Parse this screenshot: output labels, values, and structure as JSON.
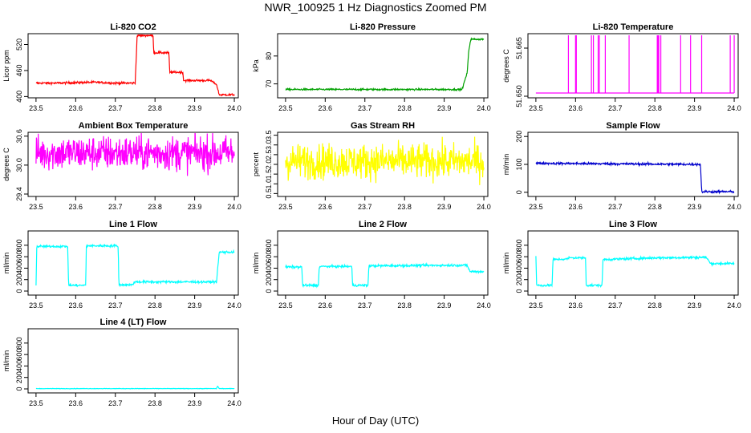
{
  "figure": {
    "title": "NWR_100925  1 Hz Diagnostics Zoomed PM",
    "xlabel": "Hour of Day (UTC)"
  },
  "chart_data": [
    {
      "type": "line",
      "title": "Li-820 CO2",
      "ylabel": "Licor ppm",
      "color": "#ff0000",
      "xlim": [
        23.48,
        24.01
      ],
      "ylim": [
        397,
        545
      ],
      "yticks": [
        "400",
        "460",
        "520"
      ],
      "ytick_values": [
        400,
        460,
        520
      ],
      "xticks": [
        "23.5",
        "23.6",
        "23.7",
        "23.8",
        "23.9",
        "24.0"
      ],
      "series": [
        {
          "noise": 1.2,
          "points": [
            [
              23.5,
              431
            ],
            [
              23.55,
              431
            ],
            [
              23.6,
              432
            ],
            [
              23.65,
              433
            ],
            [
              23.7,
              431
            ],
            [
              23.75,
              431
            ],
            [
              23.755,
              541
            ],
            [
              23.795,
              541
            ],
            [
              23.797,
              501
            ],
            [
              23.835,
              501
            ],
            [
              23.837,
              456
            ],
            [
              23.87,
              456
            ],
            [
              23.872,
              437
            ],
            [
              23.94,
              437
            ],
            [
              23.955,
              428
            ],
            [
              23.962,
              404
            ],
            [
              24.0,
              404
            ]
          ]
        }
      ]
    },
    {
      "type": "line",
      "title": "Li-820 Pressure",
      "ylabel": "kPa",
      "color": "#00a000",
      "xlim": [
        23.48,
        24.01
      ],
      "ylim": [
        65,
        88
      ],
      "yticks": [
        "70",
        "80"
      ],
      "ytick_values": [
        70,
        80
      ],
      "xticks": [
        "23.5",
        "23.6",
        "23.7",
        "23.8",
        "23.9",
        "24.0"
      ],
      "series": [
        {
          "noise": 0.15,
          "points": [
            [
              23.5,
              68
            ],
            [
              23.7,
              68
            ],
            [
              23.9,
              68
            ],
            [
              23.945,
              68
            ],
            [
              23.958,
              74
            ],
            [
              23.962,
              82
            ],
            [
              23.967,
              86
            ],
            [
              24.0,
              86
            ]
          ]
        }
      ]
    },
    {
      "type": "line",
      "title": "Li-820 Temperature",
      "ylabel": "degrees C",
      "color": "#ff00ff",
      "xlim": [
        23.48,
        24.01
      ],
      "ylim": [
        51.6495,
        51.6695
      ],
      "yticks": [
        "51.650",
        "51.665"
      ],
      "ytick_values": [
        51.65,
        51.665
      ],
      "xticks": [
        "23.5",
        "23.6",
        "23.7",
        "23.8",
        "23.9",
        "24.0"
      ],
      "series": [
        {
          "noise": 0,
          "baseline": 51.651,
          "spike_top": 51.669,
          "spikes": [
            23.582,
            23.6,
            23.602,
            23.64,
            23.645,
            23.657,
            23.66,
            23.675,
            23.735,
            23.806,
            23.808,
            23.81,
            23.815,
            23.865,
            23.89,
            23.918,
            23.99,
            24.0
          ]
        }
      ]
    },
    {
      "type": "line",
      "title": "Ambient Box Temperature",
      "ylabel": "degrees C",
      "color": "#ff00ff",
      "xlim": [
        23.48,
        24.01
      ],
      "ylim": [
        29.35,
        30.68
      ],
      "yticks": [
        "29.4",
        "30.0",
        "30.6"
      ],
      "ytick_values": [
        29.4,
        30.0,
        30.6
      ],
      "xticks": [
        "23.5",
        "23.6",
        "23.7",
        "23.8",
        "23.9",
        "24.0"
      ],
      "series": [
        {
          "noise": 0.18,
          "center": 30.25,
          "points": [
            [
              23.5,
              30.25
            ],
            [
              24.0,
              30.25
            ]
          ]
        }
      ]
    },
    {
      "type": "line",
      "title": "Gas Stream RH",
      "ylabel": "percent",
      "color": "#ffff00",
      "xlim": [
        23.48,
        24.01
      ],
      "ylim": [
        0.35,
        3.65
      ],
      "yticks": [
        "0.5",
        "1.0",
        "1.5",
        "2.0",
        "2.5",
        "3.0",
        "3.5"
      ],
      "ytick_values": [
        0.5,
        1.0,
        1.5,
        2.0,
        2.5,
        3.0,
        3.5
      ],
      "xticks": [
        "23.5",
        "23.6",
        "23.7",
        "23.8",
        "23.9",
        "24.0"
      ],
      "series": [
        {
          "noise": 0.45,
          "center": 2.15,
          "points": [
            [
              23.5,
              2.15
            ],
            [
              24.0,
              2.15
            ]
          ]
        }
      ]
    },
    {
      "type": "line",
      "title": "Sample Flow",
      "ylabel": "ml/min",
      "color": "#0000cc",
      "xlim": [
        23.48,
        24.01
      ],
      "ylim": [
        -15,
        215
      ],
      "yticks": [
        "0",
        "100",
        "200"
      ],
      "ytick_values": [
        0,
        100,
        200
      ],
      "xticks": [
        "23.5",
        "23.6",
        "23.7",
        "23.8",
        "23.9",
        "24.0"
      ],
      "series": [
        {
          "noise": 2,
          "points": [
            [
              23.5,
              104
            ],
            [
              23.6,
              103
            ],
            [
              23.7,
              102
            ],
            [
              23.8,
              101
            ],
            [
              23.91,
              100
            ],
            [
              23.915,
              100
            ],
            [
              23.918,
              2
            ],
            [
              24.0,
              2
            ]
          ]
        }
      ]
    },
    {
      "type": "line",
      "title": "Line 1 Flow",
      "ylabel": "ml/min",
      "color": "#00ffff",
      "xlim": [
        23.48,
        24.01
      ],
      "ylim": [
        -70,
        1050
      ],
      "yticks": [
        "0",
        "200",
        "400",
        "600",
        "800"
      ],
      "ytick_values": [
        0,
        200,
        400,
        600,
        800
      ],
      "xticks": [
        "23.5",
        "23.6",
        "23.7",
        "23.8",
        "23.9",
        "24.0"
      ],
      "series": [
        {
          "noise": 10,
          "points": [
            [
              23.5,
              100
            ],
            [
              23.502,
              780
            ],
            [
              23.58,
              780
            ],
            [
              23.582,
              100
            ],
            [
              23.625,
              100
            ],
            [
              23.627,
              790
            ],
            [
              23.707,
              790
            ],
            [
              23.709,
              110
            ],
            [
              23.745,
              110
            ],
            [
              23.747,
              160
            ],
            [
              23.955,
              160
            ],
            [
              23.962,
              680
            ],
            [
              24.0,
              680
            ]
          ]
        }
      ]
    },
    {
      "type": "line",
      "title": "Line 2 Flow",
      "ylabel": "ml/min",
      "color": "#00ffff",
      "xlim": [
        23.48,
        24.01
      ],
      "ylim": [
        -70,
        1050
      ],
      "yticks": [
        "0",
        "200",
        "400",
        "600",
        "800"
      ],
      "ytick_values": [
        0,
        200,
        400,
        600,
        800
      ],
      "xticks": [
        "23.5",
        "23.6",
        "23.7",
        "23.8",
        "23.9",
        "24.0"
      ],
      "series": [
        {
          "noise": 10,
          "points": [
            [
              23.5,
              420
            ],
            [
              23.541,
              420
            ],
            [
              23.543,
              100
            ],
            [
              23.583,
              100
            ],
            [
              23.585,
              430
            ],
            [
              23.667,
              430
            ],
            [
              23.669,
              100
            ],
            [
              23.708,
              100
            ],
            [
              23.71,
              440
            ],
            [
              23.9,
              450
            ],
            [
              23.958,
              450
            ],
            [
              23.965,
              340
            ],
            [
              24.0,
              340
            ]
          ]
        }
      ]
    },
    {
      "type": "line",
      "title": "Line 3 Flow",
      "ylabel": "ml/min",
      "color": "#00ffff",
      "xlim": [
        23.48,
        24.01
      ],
      "ylim": [
        -70,
        1050
      ],
      "yticks": [
        "0",
        "200",
        "400",
        "600",
        "800"
      ],
      "ytick_values": [
        0,
        200,
        400,
        600,
        800
      ],
      "xticks": [
        "23.5",
        "23.6",
        "23.7",
        "23.8",
        "23.9",
        "24.0"
      ],
      "series": [
        {
          "noise": 10,
          "points": [
            [
              23.5,
              600
            ],
            [
              23.502,
              100
            ],
            [
              23.541,
              100
            ],
            [
              23.543,
              550
            ],
            [
              23.58,
              560
            ],
            [
              23.583,
              580
            ],
            [
              23.625,
              580
            ],
            [
              23.627,
              100
            ],
            [
              23.667,
              100
            ],
            [
              23.669,
              550
            ],
            [
              23.8,
              580
            ],
            [
              23.93,
              590
            ],
            [
              23.94,
              480
            ],
            [
              24.0,
              480
            ]
          ]
        }
      ]
    },
    {
      "type": "line",
      "title": "Line 4 (LT) Flow",
      "ylabel": "ml/min",
      "color": "#00ffff",
      "xlim": [
        23.48,
        24.01
      ],
      "ylim": [
        -70,
        1050
      ],
      "yticks": [
        "0",
        "200",
        "400",
        "600",
        "800"
      ],
      "ytick_values": [
        0,
        200,
        400,
        600,
        800
      ],
      "xticks": [
        "23.5",
        "23.6",
        "23.7",
        "23.8",
        "23.9",
        "24.0"
      ],
      "series": [
        {
          "noise": 2,
          "points": [
            [
              23.5,
              5
            ],
            [
              23.955,
              5
            ],
            [
              23.958,
              50
            ],
            [
              23.962,
              5
            ],
            [
              24.0,
              5
            ]
          ]
        }
      ]
    }
  ]
}
